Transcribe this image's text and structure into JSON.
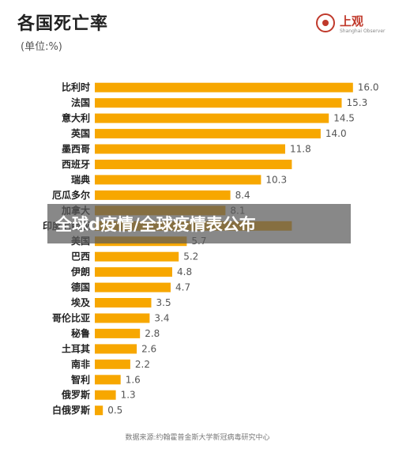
{
  "header": {
    "title": "各国死亡率",
    "subtitle": "(单位:%)"
  },
  "logo": {
    "name": "上观",
    "subtitle": "Shanghai Observer"
  },
  "footer": {
    "source": "数据来源:约翰霍普金斯大学新冠病毒研究中心"
  },
  "overlay": {
    "banner_text": "全球d疫情/全球疫情表公布"
  },
  "colors": {
    "bar": "#f7a700",
    "accent": "#c0392b"
  },
  "chart_data": {
    "type": "bar",
    "orientation": "horizontal",
    "categories": [
      "比利时",
      "法国",
      "意大利",
      "英国",
      "墨西哥",
      "西班牙",
      "瑞典",
      "厄瓜多尔",
      "加拿大",
      "印度尼西亚",
      "美国",
      "巴西",
      "伊朗",
      "德国",
      "埃及",
      "哥伦比亚",
      "秘鲁",
      "土耳其",
      "南非",
      "智利",
      "俄罗斯",
      "白俄罗斯"
    ],
    "values": [
      16.0,
      15.3,
      14.5,
      14.0,
      11.8,
      null,
      10.3,
      8.4,
      8.1,
      null,
      5.7,
      5.2,
      4.8,
      4.7,
      3.5,
      3.4,
      2.8,
      2.6,
      2.2,
      1.6,
      1.3,
      0.5
    ],
    "value_labels": [
      "16.0",
      "15.3",
      "14.5",
      "14.0",
      "11.8",
      "",
      "10.3",
      "8.4",
      "8.1",
      "",
      "5.7",
      "5.2",
      "4.8",
      "4.7",
      "3.5",
      "3.4",
      "2.8",
      "2.6",
      "2.2",
      "1.6",
      "1.3",
      "0.5"
    ],
    "xlim": [
      0,
      16.5
    ],
    "grid": false,
    "legend": "none"
  }
}
